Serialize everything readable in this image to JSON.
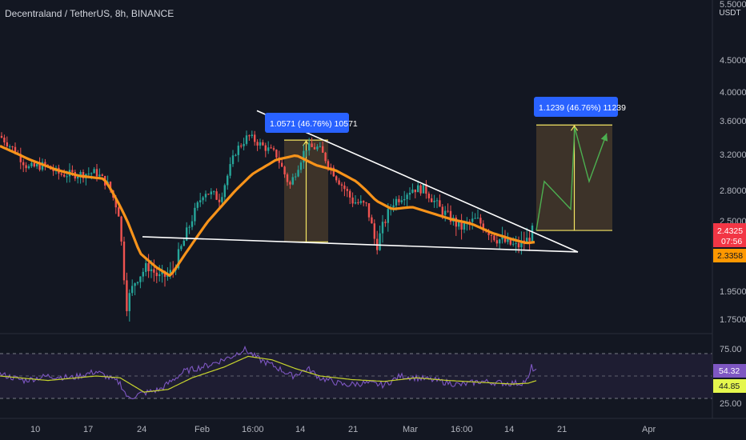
{
  "header": {
    "title": "Decentraland / TetherUS, 8h, BINANCE"
  },
  "price_axis": {
    "currency": "USDT",
    "ticks": [
      "5.5000",
      "4.5000",
      "4.0000",
      "3.6000",
      "3.2000",
      "2.8000",
      "2.5000",
      "1.9500",
      "1.7500"
    ],
    "last_price": "2.4325",
    "countdown": "07:56",
    "ma_value": "2.3358"
  },
  "rsi_axis": {
    "ticks": [
      "75.00",
      "25.00"
    ],
    "rsi_value": "54.32",
    "ma_value": "44.85"
  },
  "time_axis": {
    "ticks": [
      "10",
      "17",
      "24",
      "Feb",
      "16:00",
      "14",
      "21",
      "Mar",
      "16:00",
      "14",
      "21",
      "Apr"
    ]
  },
  "measures": [
    {
      "label": "1.0571 (46.76%) 10571"
    },
    {
      "label": "1.1239 (46.76%) 11239"
    }
  ],
  "colors": {
    "background": "#131722",
    "up": "#26a69a",
    "down": "#ef5350",
    "ma": "#f7931a",
    "rsi": "#7e57c2",
    "rsi_ma": "#c7d42d",
    "trend": "#ffffff",
    "projection": "#4caf50",
    "label_bg": "#2962ff",
    "last_price_bg": "#f23645",
    "ma_bg": "#ff9800"
  },
  "chart_data": {
    "type": "candlestick",
    "symbol": "Decentraland / TetherUS",
    "interval": "8h",
    "exchange": "BINANCE",
    "price_keypoints": [
      [
        0,
        3.42
      ],
      [
        18,
        3.25
      ],
      [
        35,
        3.05
      ],
      [
        55,
        3.08
      ],
      [
        75,
        2.98
      ],
      [
        100,
        2.98
      ],
      [
        120,
        3.0
      ],
      [
        135,
        2.86
      ],
      [
        148,
        2.6
      ],
      [
        158,
        1.85
      ],
      [
        170,
        2.05
      ],
      [
        185,
        2.15
      ],
      [
        200,
        2.05
      ],
      [
        215,
        2.1
      ],
      [
        230,
        2.35
      ],
      [
        255,
        2.8
      ],
      [
        275,
        2.72
      ],
      [
        295,
        3.25
      ],
      [
        310,
        3.42
      ],
      [
        328,
        3.3
      ],
      [
        345,
        3.2
      ],
      [
        362,
        2.85
      ],
      [
        382,
        3.28
      ],
      [
        398,
        3.28
      ],
      [
        420,
        2.95
      ],
      [
        440,
        2.7
      ],
      [
        458,
        2.65
      ],
      [
        470,
        2.3
      ],
      [
        490,
        2.68
      ],
      [
        515,
        2.82
      ],
      [
        530,
        2.82
      ],
      [
        550,
        2.62
      ],
      [
        575,
        2.45
      ],
      [
        595,
        2.52
      ],
      [
        620,
        2.37
      ],
      [
        645,
        2.3
      ],
      [
        658,
        2.35
      ],
      [
        666,
        2.43
      ]
    ],
    "ma_keypoints": [
      [
        0,
        3.3
      ],
      [
        35,
        3.15
      ],
      [
        70,
        3.03
      ],
      [
        100,
        2.96
      ],
      [
        130,
        2.93
      ],
      [
        150,
        2.65
      ],
      [
        175,
        2.25
      ],
      [
        195,
        2.14
      ],
      [
        213,
        2.07
      ],
      [
        232,
        2.25
      ],
      [
        255,
        2.46
      ],
      [
        285,
        2.72
      ],
      [
        315,
        2.98
      ],
      [
        345,
        3.14
      ],
      [
        370,
        3.19
      ],
      [
        395,
        3.08
      ],
      [
        420,
        3.02
      ],
      [
        445,
        2.9
      ],
      [
        470,
        2.7
      ],
      [
        490,
        2.62
      ],
      [
        515,
        2.64
      ],
      [
        540,
        2.58
      ],
      [
        565,
        2.52
      ],
      [
        590,
        2.48
      ],
      [
        615,
        2.41
      ],
      [
        640,
        2.36
      ],
      [
        658,
        2.33
      ],
      [
        670,
        2.34
      ]
    ],
    "rsi_keypoints": [
      [
        0,
        52
      ],
      [
        30,
        45
      ],
      [
        60,
        50
      ],
      [
        90,
        48
      ],
      [
        120,
        55
      ],
      [
        150,
        42
      ],
      [
        160,
        25
      ],
      [
        175,
        30
      ],
      [
        200,
        35
      ],
      [
        230,
        55
      ],
      [
        260,
        62
      ],
      [
        290,
        72
      ],
      [
        305,
        80
      ],
      [
        325,
        68
      ],
      [
        345,
        60
      ],
      [
        365,
        50
      ],
      [
        385,
        58
      ],
      [
        400,
        48
      ],
      [
        430,
        40
      ],
      [
        455,
        42
      ],
      [
        480,
        40
      ],
      [
        500,
        50
      ],
      [
        520,
        48
      ],
      [
        545,
        45
      ],
      [
        575,
        40
      ],
      [
        600,
        44
      ],
      [
        630,
        42
      ],
      [
        650,
        42
      ],
      [
        660,
        46
      ],
      [
        664,
        60
      ],
      [
        670,
        55
      ]
    ],
    "rsi_ma_keypoints": [
      [
        0,
        50
      ],
      [
        60,
        45
      ],
      [
        120,
        50
      ],
      [
        150,
        48
      ],
      [
        180,
        32
      ],
      [
        210,
        35
      ],
      [
        240,
        48
      ],
      [
        280,
        60
      ],
      [
        310,
        72
      ],
      [
        340,
        68
      ],
      [
        370,
        58
      ],
      [
        400,
        50
      ],
      [
        440,
        46
      ],
      [
        480,
        44
      ],
      [
        520,
        48
      ],
      [
        560,
        45
      ],
      [
        600,
        43
      ],
      [
        640,
        41
      ],
      [
        660,
        42
      ],
      [
        670,
        44.85
      ]
    ],
    "trendlines": [
      {
        "from": [
          321,
          3.74
        ],
        "to": [
          722,
          2.26
        ]
      },
      {
        "from": [
          178,
          2.38
        ],
        "to": [
          722,
          2.26
        ]
      }
    ],
    "projection": [
      [
        670,
        2.43
      ],
      [
        680,
        2.9
      ],
      [
        713,
        2.62
      ],
      [
        718,
        3.52
      ],
      [
        736,
        2.9
      ],
      [
        758,
        3.45
      ]
    ],
    "measure_zones": [
      {
        "x1": 355,
        "x2": 410,
        "low": 2.34,
        "high": 3.37
      },
      {
        "x1": 670,
        "x2": 765,
        "low": 2.43,
        "high": 3.55
      }
    ],
    "rsi_levels": [
      70,
      50,
      30
    ],
    "price_axis_range": [
      1.7,
      5.5
    ]
  }
}
